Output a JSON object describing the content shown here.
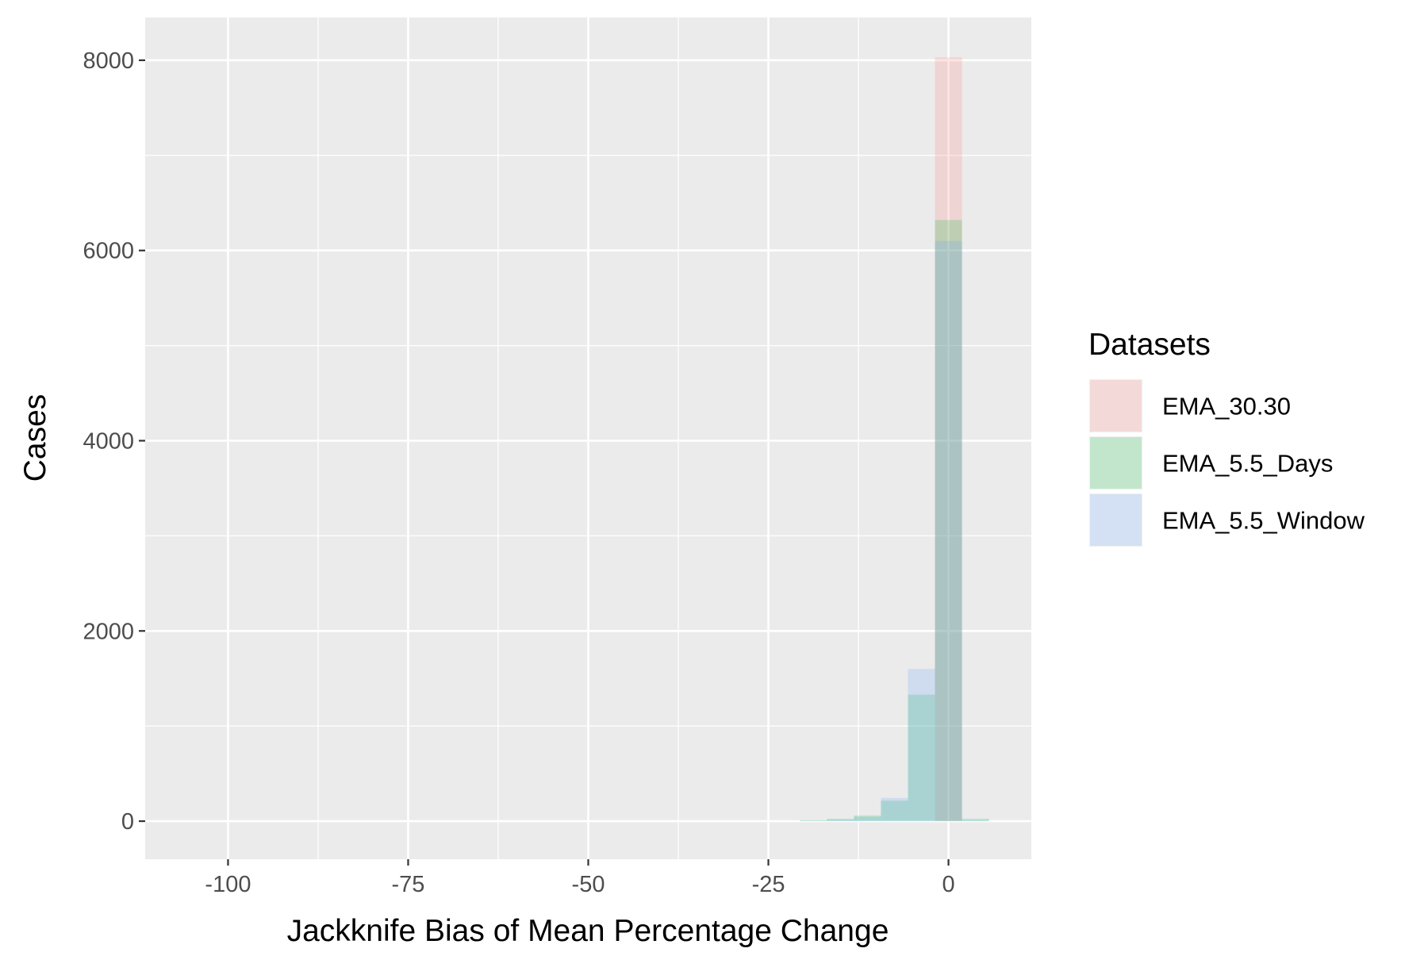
{
  "chart_data": {
    "type": "bar",
    "subtype": "overlaid-histogram",
    "title": "",
    "xlabel": "Jackknife Bias of Mean Percentage Change",
    "ylabel": "Cases",
    "xlim": [
      -111.5,
      11.5
    ],
    "ylim": [
      -400,
      8450
    ],
    "x_ticks": [
      -100,
      -75,
      -50,
      -25,
      0
    ],
    "x_tick_labels": [
      "-100",
      "-75",
      "-50",
      "-25",
      "0"
    ],
    "y_ticks": [
      0,
      2000,
      4000,
      6000,
      8000
    ],
    "y_tick_labels": [
      "0",
      "2000",
      "4000",
      "6000",
      "8000"
    ],
    "grid": true,
    "bin_width": 3.75,
    "bin_centers": [
      -18.75,
      -15,
      -11.25,
      -7.5,
      -3.75,
      0,
      3.75
    ],
    "series": [
      {
        "name": "EMA_30.30",
        "color": "#F8766D",
        "values": [
          0,
          0,
          0,
          0,
          0,
          8030,
          0
        ]
      },
      {
        "name": "EMA_5.5_Days",
        "color": "#00BA38",
        "values": [
          10,
          25,
          60,
          215,
          1330,
          6320,
          25
        ]
      },
      {
        "name": "EMA_5.5_Window",
        "color": "#619CFF",
        "values": [
          5,
          15,
          45,
          245,
          1600,
          6100,
          10
        ]
      }
    ],
    "fill_opacity": 0.2,
    "legend": {
      "title": "Datasets",
      "position": "right",
      "entries": [
        "EMA_30.30",
        "EMA_5.5_Days",
        "EMA_5.5_Window"
      ]
    },
    "panel_background": "#EBEBEB",
    "gridline_color": "#FFFFFF"
  }
}
